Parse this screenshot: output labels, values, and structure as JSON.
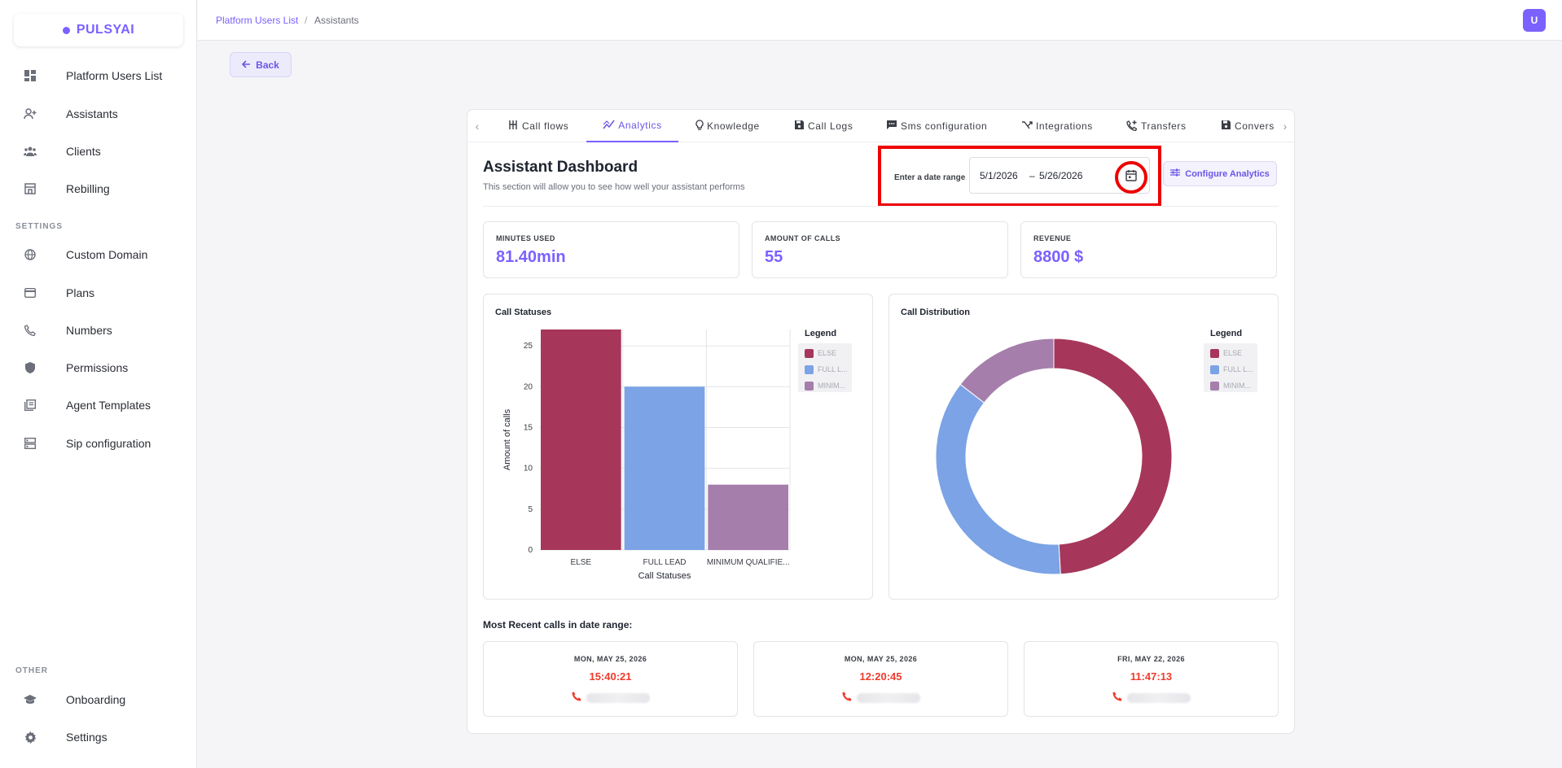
{
  "brand": {
    "name": "PULSYAI",
    "color": "#7b61ff"
  },
  "sidebar": {
    "items": [
      {
        "label": "Platform Users List",
        "icon": "dashboard-icon"
      },
      {
        "label": "Assistants",
        "icon": "person-add-icon"
      },
      {
        "label": "Clients",
        "icon": "group-icon"
      },
      {
        "label": "Rebilling",
        "icon": "storefront-icon"
      }
    ],
    "settings_label": "SETTINGS",
    "settings_items": [
      {
        "label": "Custom Domain",
        "icon": "globe-icon"
      },
      {
        "label": "Plans",
        "icon": "credit-card-icon"
      },
      {
        "label": "Numbers",
        "icon": "phone-call-icon"
      },
      {
        "label": "Permissions",
        "icon": "shield-icon"
      },
      {
        "label": "Agent Templates",
        "icon": "library-icon"
      },
      {
        "label": "Sip configuration",
        "icon": "server-icon"
      }
    ],
    "other_label": "OTHER",
    "other_items": [
      {
        "label": "Onboarding",
        "icon": "school-icon"
      },
      {
        "label": "Settings",
        "icon": "gear-icon"
      }
    ]
  },
  "topbar": {
    "breadcrumb": [
      "Platform Users List",
      "/",
      "Assistants"
    ],
    "avatar": "U"
  },
  "back_label": "Back",
  "tabs": [
    {
      "label": "Call flows",
      "icon": "call-flow-icon"
    },
    {
      "label": "Analytics",
      "icon": "analytics-icon",
      "active": true
    },
    {
      "label": "Knowledge",
      "icon": "lightbulb-icon"
    },
    {
      "label": "Call Logs",
      "icon": "save-icon"
    },
    {
      "label": "Sms configuration",
      "icon": "sms-icon"
    },
    {
      "label": "Integrations",
      "icon": "integration-icon"
    },
    {
      "label": "Transfers",
      "icon": "phone-forward-icon"
    },
    {
      "label": "Convers",
      "icon": "save-icon"
    }
  ],
  "dashboard": {
    "title": "Assistant Dashboard",
    "subtitle": "This section will allow you to see how well your assistant performs",
    "date_range_label": "Enter a date range",
    "date_start": "5/1/2026",
    "date_sep": "–",
    "date_end": "5/26/2026",
    "configure_label": "Configure Analytics"
  },
  "stats": [
    {
      "label": "MINUTES USED",
      "value": "81.40min"
    },
    {
      "label": "AMOUNT OF CALLS",
      "value": "55"
    },
    {
      "label": "REVENUE",
      "value": "8800 $"
    }
  ],
  "charts": {
    "statuses_title": "Call Statuses",
    "distribution_title": "Call Distribution",
    "legend_title": "Legend",
    "legend_items": [
      "ELSE",
      "FULL L...",
      "MINIM..."
    ]
  },
  "chart_data": [
    {
      "type": "bar",
      "title": "Call Statuses",
      "categories": [
        "ELSE",
        "FULL LEAD",
        "MINIMUM QUALIFIE..."
      ],
      "values": [
        27,
        20,
        8
      ],
      "colors": [
        "#a6375a",
        "#7ba3e6",
        "#a57eab"
      ],
      "xlabel": "Call Statuses",
      "ylabel": "Amount of calls",
      "ylim": [
        0,
        27
      ],
      "yticks": [
        0,
        5,
        10,
        15,
        20,
        25
      ],
      "grid": true,
      "legend": "right"
    },
    {
      "type": "pie",
      "title": "Call Distribution",
      "labels": [
        "ELSE",
        "FULL LEAD",
        "MINIMUM QUALIFIE..."
      ],
      "values": [
        27,
        20,
        8
      ],
      "colors": [
        "#a6375a",
        "#7ba3e6",
        "#a57eab"
      ],
      "donut": true,
      "legend": "right"
    }
  ],
  "recent": {
    "title": "Most Recent calls in date range:",
    "calls": [
      {
        "date": "MON, MAY 25, 2026",
        "time": "15:40:21"
      },
      {
        "date": "MON, MAY 25, 2026",
        "time": "12:20:45"
      },
      {
        "date": "FRI, MAY 22, 2026",
        "time": "11:47:13"
      }
    ]
  }
}
